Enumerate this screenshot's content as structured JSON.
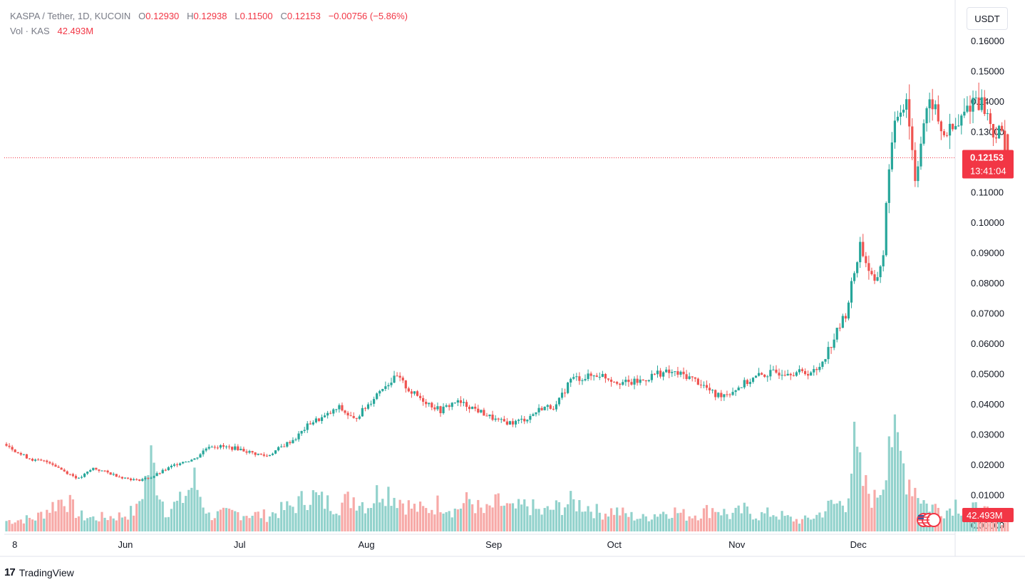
{
  "legend": {
    "symbol": "KASPA / Tether, 1D, KUCOIN",
    "o_label": "O",
    "o_value": "0.12930",
    "h_label": "H",
    "h_value": "0.12938",
    "l_label": "L",
    "l_value": "0.11500",
    "c_label": "C",
    "c_value": "0.12153",
    "change": "−0.00756 (−5.86%)",
    "vol_label": "Vol · KAS",
    "vol_value": "42.493M"
  },
  "currency_button": "USDT",
  "price_tag": {
    "price": "0.12153",
    "countdown": "13:41:04"
  },
  "volume_tag": "42.493M",
  "footer": {
    "logo": "17",
    "brand": "TradingView"
  },
  "colors": {
    "up": "#26a69a",
    "down": "#ef5350",
    "up_vol": "#92d2cc",
    "down_vol": "#f7a9a7",
    "tag": "#f23645"
  },
  "chart_data": {
    "type": "candlestick",
    "y_ticks": [
      "0.16000",
      "0.15000",
      "0.14000",
      "0.13000",
      "0.12000",
      "0.11000",
      "0.10000",
      "0.09000",
      "0.08000",
      "0.07000",
      "0.06000",
      "0.05000",
      "0.04000",
      "0.03000",
      "0.02000",
      "0.01000",
      "0.00000"
    ],
    "x_labels": [
      "8",
      "Jun",
      "Jul",
      "Aug",
      "Sep",
      "Oct",
      "Nov",
      "Dec"
    ],
    "last_price": 0.12153,
    "close_anchors": [
      [
        0,
        0.027
      ],
      [
        5,
        0.0235
      ],
      [
        10,
        0.0215
      ],
      [
        15,
        0.021
      ],
      [
        20,
        0.018
      ],
      [
        25,
        0.0155
      ],
      [
        30,
        0.019
      ],
      [
        35,
        0.0175
      ],
      [
        40,
        0.016
      ],
      [
        45,
        0.015
      ],
      [
        50,
        0.016
      ],
      [
        55,
        0.0185
      ],
      [
        60,
        0.021
      ],
      [
        65,
        0.022
      ],
      [
        70,
        0.0265
      ],
      [
        75,
        0.026
      ],
      [
        80,
        0.0255
      ],
      [
        85,
        0.024
      ],
      [
        90,
        0.023
      ],
      [
        95,
        0.026
      ],
      [
        100,
        0.029
      ],
      [
        105,
        0.034
      ],
      [
        110,
        0.036
      ],
      [
        115,
        0.039
      ],
      [
        120,
        0.035
      ],
      [
        125,
        0.04
      ],
      [
        130,
        0.046
      ],
      [
        135,
        0.049
      ],
      [
        140,
        0.044
      ],
      [
        145,
        0.041
      ],
      [
        150,
        0.038
      ],
      [
        155,
        0.041
      ],
      [
        160,
        0.0395
      ],
      [
        165,
        0.037
      ],
      [
        170,
        0.0345
      ],
      [
        175,
        0.034
      ],
      [
        180,
        0.0355
      ],
      [
        185,
        0.039
      ],
      [
        190,
        0.0395
      ],
      [
        195,
        0.0485
      ],
      [
        200,
        0.049
      ],
      [
        205,
        0.05
      ],
      [
        210,
        0.048
      ],
      [
        215,
        0.047
      ],
      [
        220,
        0.048
      ],
      [
        225,
        0.0505
      ],
      [
        230,
        0.0505
      ],
      [
        235,
        0.0495
      ],
      [
        240,
        0.047
      ],
      [
        245,
        0.043
      ],
      [
        250,
        0.044
      ],
      [
        255,
        0.047
      ],
      [
        260,
        0.0495
      ],
      [
        265,
        0.0505
      ],
      [
        270,
        0.051
      ],
      [
        275,
        0.0505
      ],
      [
        280,
        0.051
      ],
      [
        285,
        0.06
      ],
      [
        290,
        0.07
      ],
      [
        295,
        0.093
      ],
      [
        300,
        0.079
      ],
      [
        303,
        0.09
      ],
      [
        305,
        0.12
      ],
      [
        308,
        0.136
      ],
      [
        311,
        0.142
      ],
      [
        314,
        0.115
      ],
      [
        317,
        0.133
      ],
      [
        320,
        0.14
      ],
      [
        323,
        0.13
      ],
      [
        326,
        0.13
      ],
      [
        329,
        0.132
      ],
      [
        332,
        0.138
      ],
      [
        335,
        0.142
      ],
      [
        338,
        0.138
      ],
      [
        341,
        0.13
      ],
      [
        344,
        0.129
      ],
      [
        346,
        0.12153
      ]
    ],
    "volume_anchors": [
      [
        0,
        4
      ],
      [
        10,
        5
      ],
      [
        20,
        13
      ],
      [
        25,
        6
      ],
      [
        30,
        5
      ],
      [
        40,
        6
      ],
      [
        45,
        8
      ],
      [
        50,
        27
      ],
      [
        55,
        8
      ],
      [
        60,
        11
      ],
      [
        65,
        19
      ],
      [
        70,
        6
      ],
      [
        80,
        7
      ],
      [
        90,
        6
      ],
      [
        100,
        10
      ],
      [
        105,
        14
      ],
      [
        110,
        11
      ],
      [
        115,
        10
      ],
      [
        120,
        13
      ],
      [
        125,
        10
      ],
      [
        130,
        17
      ],
      [
        135,
        13
      ],
      [
        140,
        9
      ],
      [
        145,
        8
      ],
      [
        150,
        11
      ],
      [
        155,
        8
      ],
      [
        160,
        12
      ],
      [
        165,
        7
      ],
      [
        170,
        11
      ],
      [
        175,
        8
      ],
      [
        180,
        10
      ],
      [
        185,
        7
      ],
      [
        190,
        9
      ],
      [
        195,
        11
      ],
      [
        200,
        10
      ],
      [
        205,
        7
      ],
      [
        210,
        8
      ],
      [
        215,
        6
      ],
      [
        220,
        5
      ],
      [
        225,
        7
      ],
      [
        230,
        8
      ],
      [
        235,
        6
      ],
      [
        240,
        7
      ],
      [
        245,
        9
      ],
      [
        250,
        6
      ],
      [
        255,
        8
      ],
      [
        260,
        6
      ],
      [
        265,
        7
      ],
      [
        270,
        5
      ],
      [
        275,
        4
      ],
      [
        280,
        6
      ],
      [
        285,
        10
      ],
      [
        290,
        11
      ],
      [
        293,
        31
      ],
      [
        296,
        18
      ],
      [
        300,
        12
      ],
      [
        303,
        20
      ],
      [
        305,
        41
      ],
      [
        307,
        32
      ],
      [
        309,
        28
      ],
      [
        311,
        22
      ],
      [
        315,
        15
      ],
      [
        318,
        10
      ],
      [
        322,
        9
      ],
      [
        325,
        8
      ],
      [
        328,
        11
      ],
      [
        332,
        7
      ],
      [
        336,
        9
      ],
      [
        340,
        6
      ],
      [
        344,
        4
      ],
      [
        346,
        4
      ]
    ],
    "y_range": [
      0.0,
      0.16
    ],
    "grid": false
  }
}
